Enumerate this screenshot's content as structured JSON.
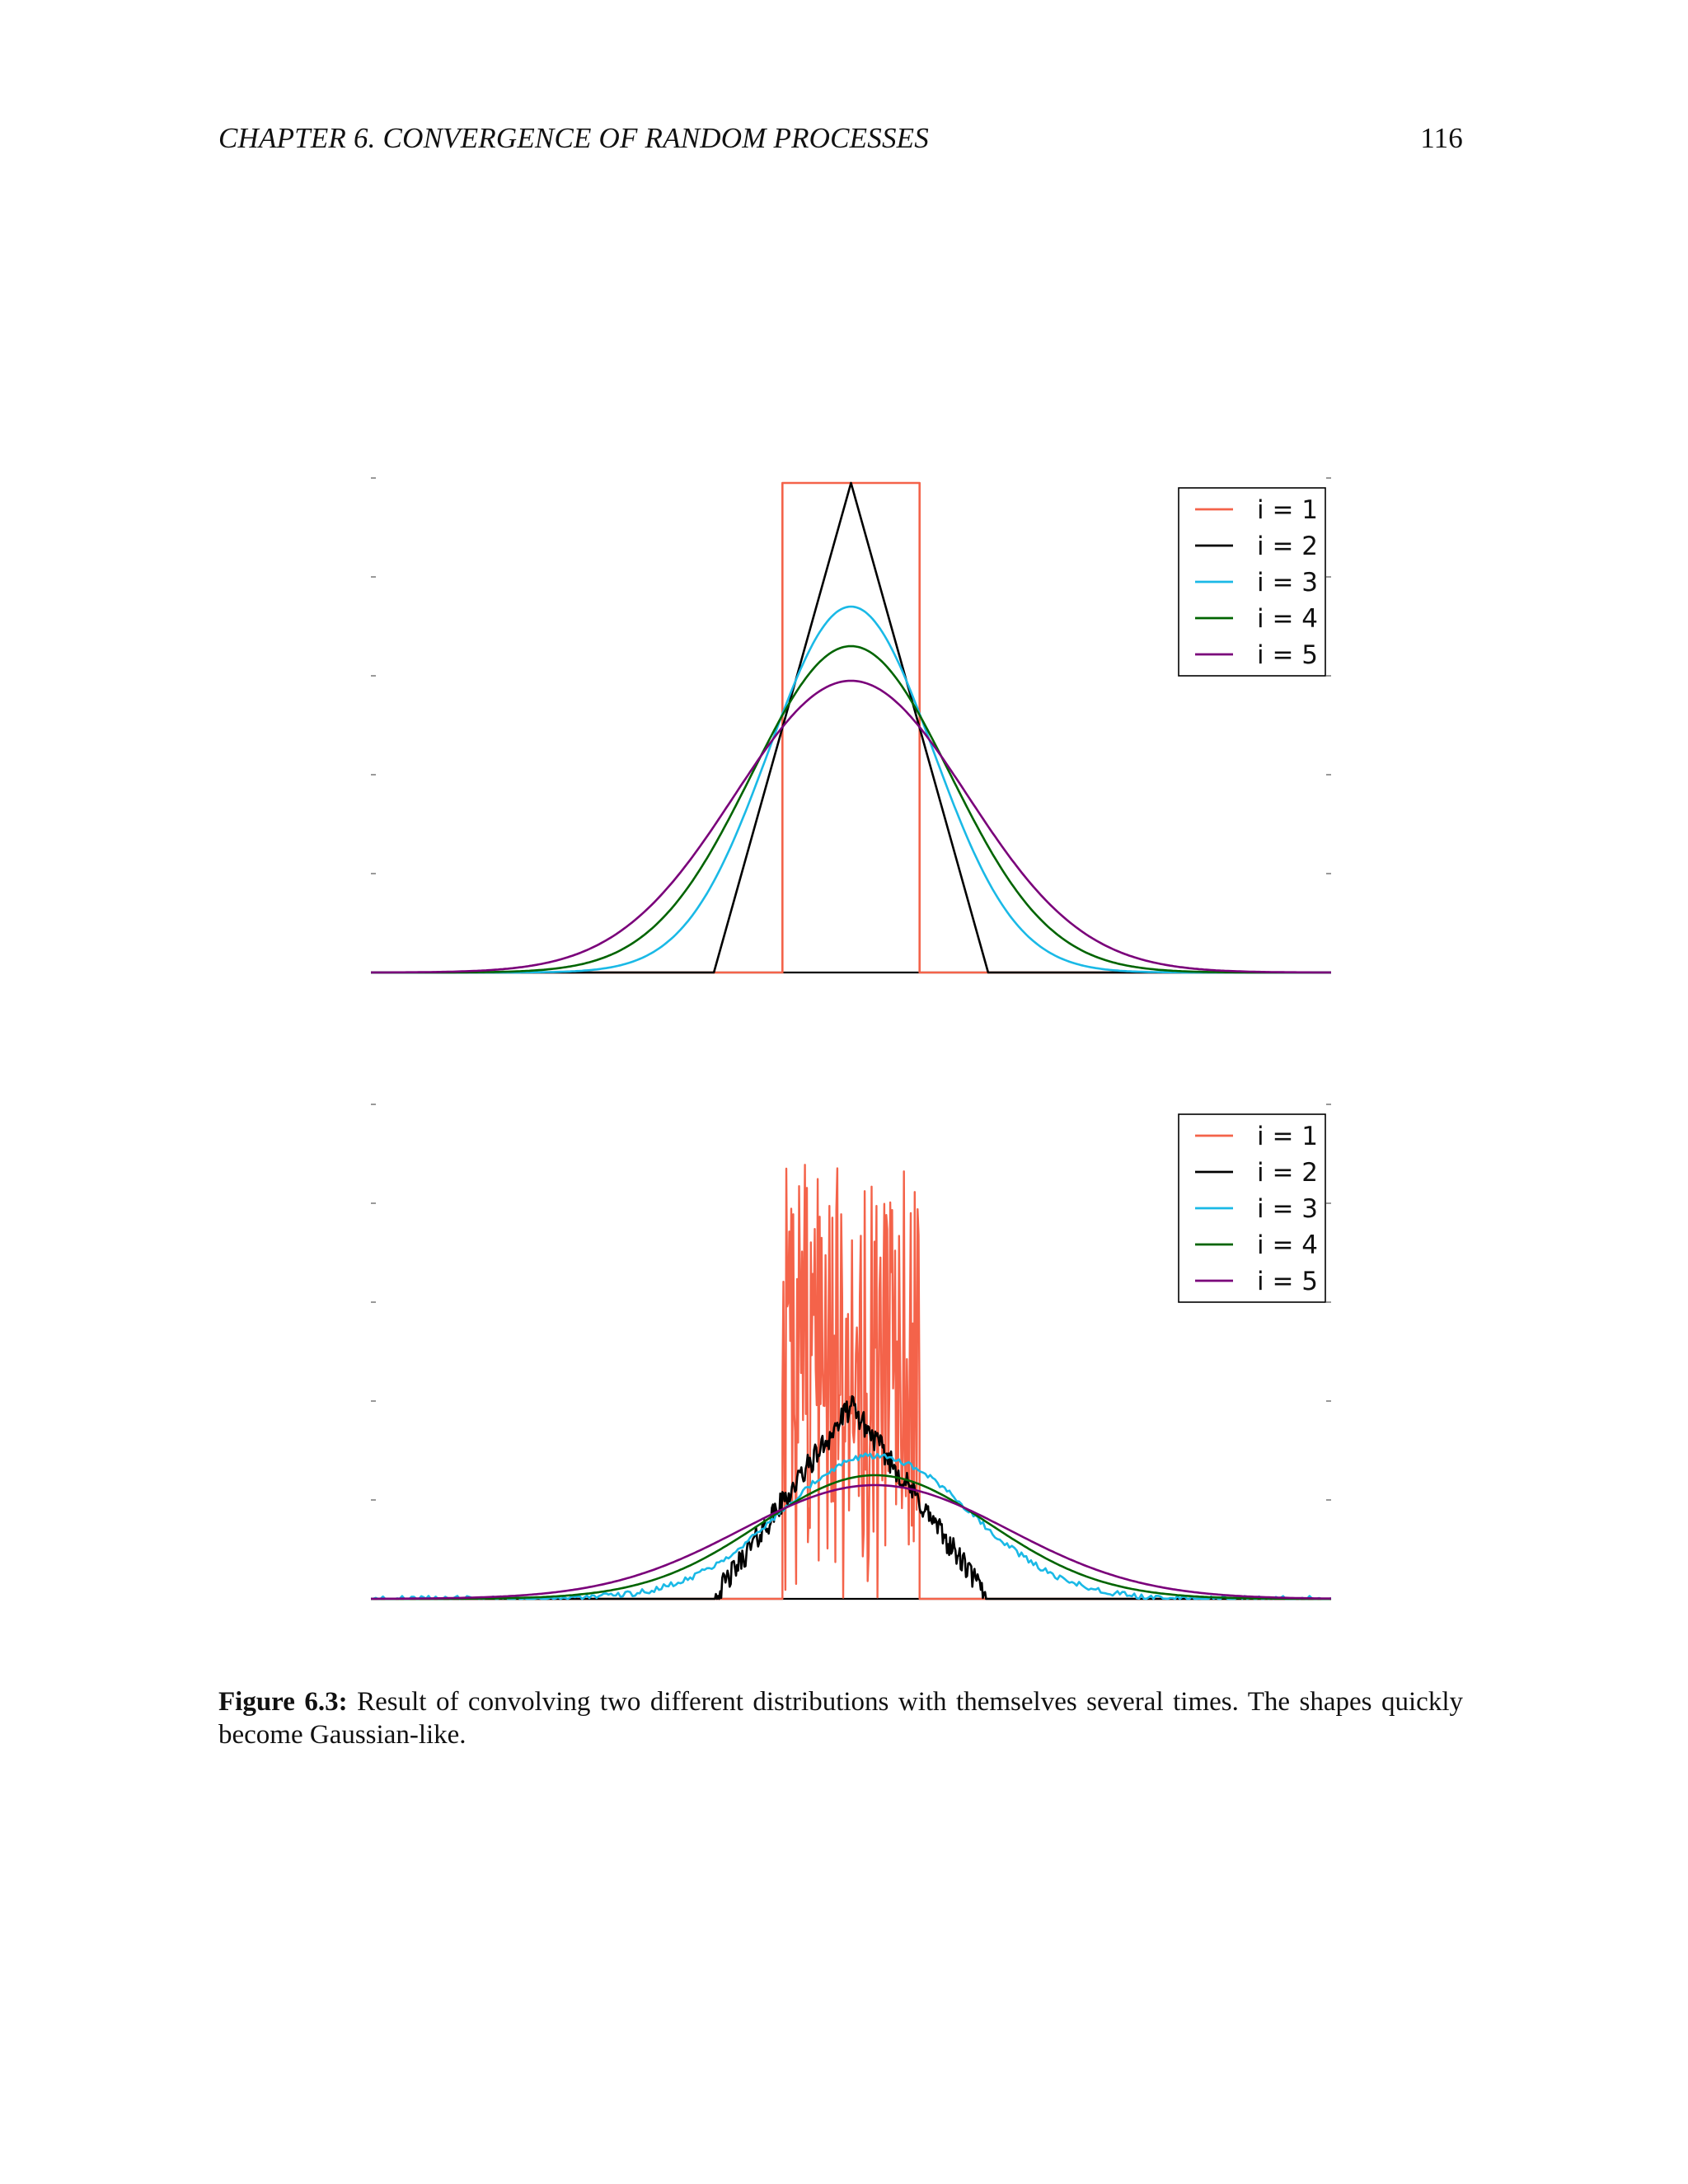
{
  "header": {
    "chapter": "CHAPTER 6.  CONVERGENCE OF RANDOM PROCESSES",
    "page_number": "116"
  },
  "caption": {
    "label": "Figure 6.3:",
    "text": "Result of convolving two different distributions with themselves several times. The shapes quickly become Gaussian-like."
  },
  "colors": {
    "i1": "#f4634a",
    "i2": "#000000",
    "i3": "#1ab9e6",
    "i4": "#006400",
    "i5": "#7a007a"
  },
  "chart_data": [
    {
      "type": "line",
      "title": "",
      "xlabel": "",
      "ylabel": "",
      "xlim": [
        -7,
        7
      ],
      "ylim": [
        0,
        1
      ],
      "tick_labels_visible": false,
      "legend_position": "top-right",
      "series": [
        {
          "name": "i = 1",
          "shape": "uniform",
          "support": [
            -1,
            1
          ],
          "peak": 0.99
        },
        {
          "name": "i = 2",
          "shape": "triangle",
          "support": [
            -2,
            2
          ],
          "peak": 0.99
        },
        {
          "name": "i = 3",
          "shape": "bell",
          "peak": 0.74
        },
        {
          "name": "i = 4",
          "shape": "bell",
          "peak": 0.66
        },
        {
          "name": "i = 5",
          "shape": "bell",
          "peak": 0.59
        }
      ]
    },
    {
      "type": "line",
      "title": "",
      "xlabel": "",
      "ylabel": "",
      "xlim": [
        -7,
        7
      ],
      "ylim": [
        0,
        1
      ],
      "tick_labels_visible": false,
      "legend_position": "top-right",
      "series": [
        {
          "name": "i = 1",
          "shape": "noisy-uniform",
          "support": [
            -1,
            1
          ],
          "max_peak": 0.88
        },
        {
          "name": "i = 2",
          "shape": "noisy-triangle",
          "support": [
            -2,
            2
          ],
          "peak": 0.39
        },
        {
          "name": "i = 3",
          "shape": "bell",
          "peak": 0.29
        },
        {
          "name": "i = 4",
          "shape": "bell",
          "peak": 0.25
        },
        {
          "name": "i = 5",
          "shape": "bell",
          "peak": 0.23
        }
      ]
    }
  ]
}
